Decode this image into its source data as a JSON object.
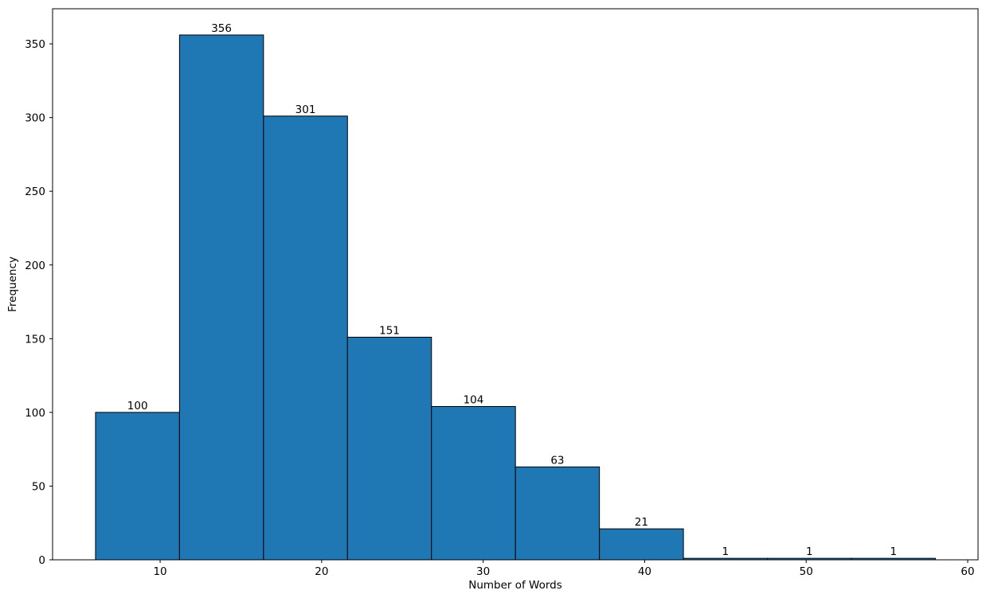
{
  "chart_data": {
    "type": "bar",
    "subtype": "histogram",
    "title": "",
    "xlabel": "Number of Words",
    "ylabel": "Frequency",
    "bin_start": 6,
    "bin_width": 5.2,
    "bin_edges": [
      6.0,
      11.2,
      16.4,
      21.6,
      26.8,
      32.0,
      37.2,
      42.4,
      47.6,
      52.8,
      58.0
    ],
    "counts": [
      100,
      356,
      301,
      151,
      104,
      63,
      21,
      1,
      1,
      1
    ],
    "bar_value_labels": [
      "100",
      "356",
      "301",
      "151",
      "104",
      "63",
      "21",
      "1",
      "1",
      "1"
    ],
    "x_ticks": [
      10,
      20,
      30,
      40,
      50,
      60
    ],
    "y_ticks": [
      0,
      50,
      100,
      150,
      200,
      250,
      300,
      350
    ],
    "xlim": [
      3.34,
      60.64
    ],
    "ylim": [
      0,
      373.8
    ],
    "grid": false,
    "legend": null,
    "colors": {
      "bar_fill": "#1f77b4",
      "bar_edge": "#000000",
      "spine": "#000000",
      "text": "#000000",
      "background": "#ffffff"
    }
  }
}
